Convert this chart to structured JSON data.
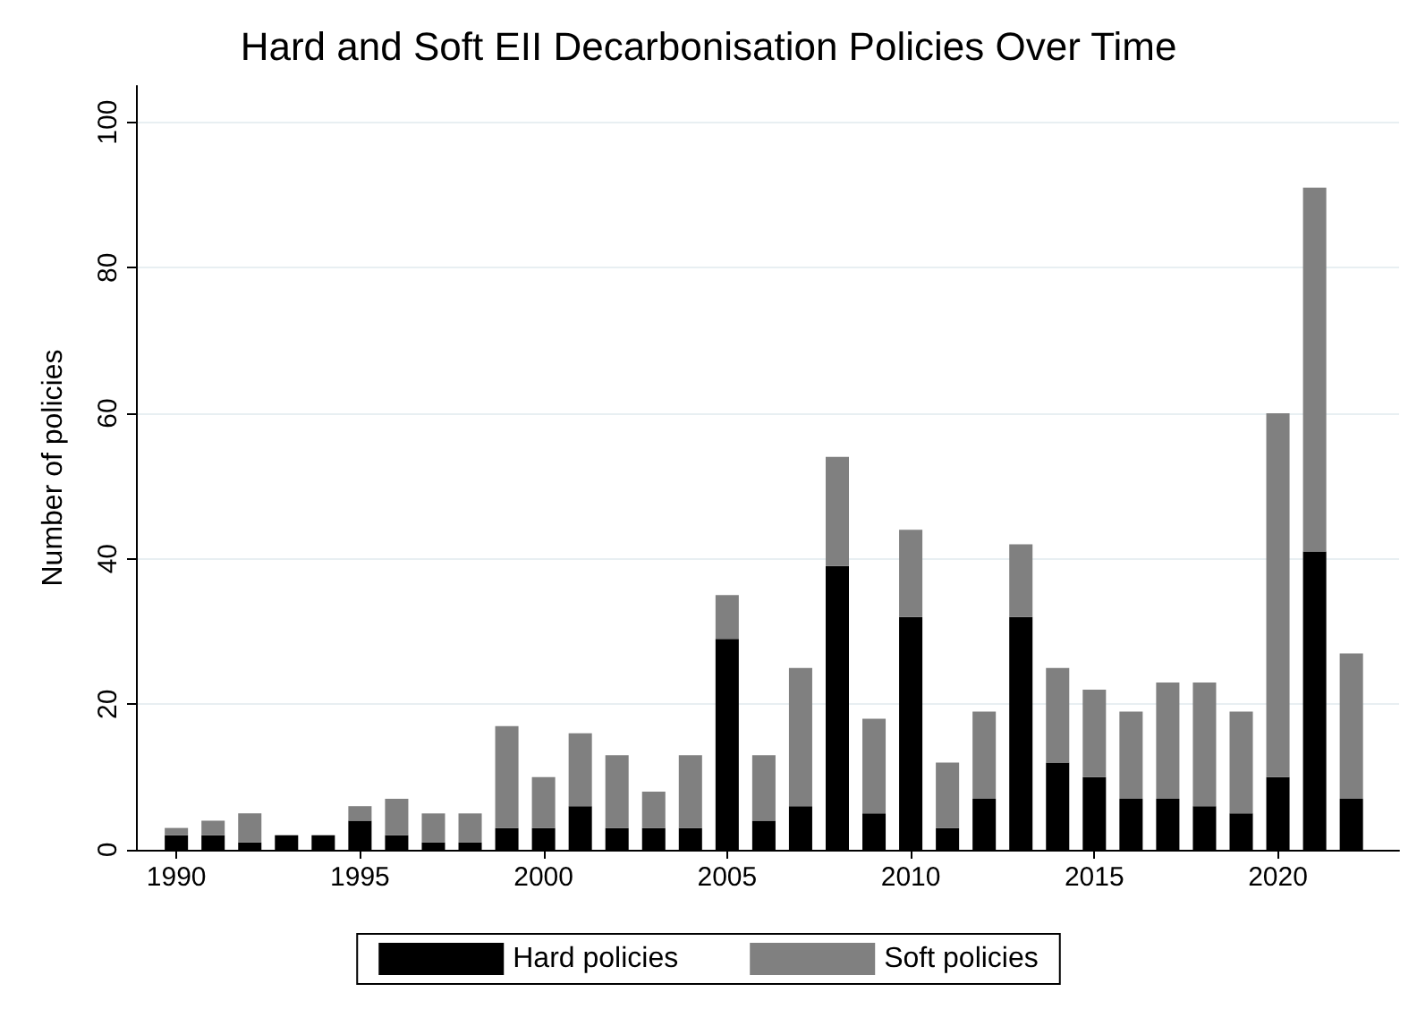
{
  "chart_data": {
    "type": "bar",
    "title": "Hard and Soft EII Decarbonisation Policies Over Time",
    "ylabel": "Number of policies",
    "x": [
      1990,
      1991,
      1992,
      1993,
      1994,
      1995,
      1996,
      1997,
      1998,
      1999,
      2000,
      2001,
      2002,
      2003,
      2004,
      2005,
      2006,
      2007,
      2008,
      2009,
      2010,
      2011,
      2012,
      2013,
      2014,
      2015,
      2016,
      2017,
      2018,
      2019,
      2020,
      2021,
      2022
    ],
    "series": [
      {
        "name": "Hard policies",
        "color": "#000000",
        "values": [
          2,
          2,
          1,
          2,
          2,
          4,
          2,
          1,
          1,
          3,
          3,
          6,
          3,
          3,
          3,
          29,
          4,
          6,
          39,
          5,
          32,
          3,
          7,
          32,
          12,
          10,
          7,
          7,
          6,
          5,
          10,
          41,
          7
        ]
      },
      {
        "name": "Soft policies",
        "color": "#808080",
        "values": [
          1,
          2,
          4,
          0,
          0,
          2,
          5,
          4,
          4,
          14,
          7,
          10,
          10,
          5,
          10,
          6,
          9,
          19,
          15,
          13,
          12,
          9,
          12,
          10,
          13,
          12,
          12,
          16,
          17,
          14,
          50,
          50,
          20
        ]
      }
    ],
    "stacked": true,
    "xlim": [
      1988.9,
      2023.3
    ],
    "xticks": [
      1990,
      1995,
      2000,
      2005,
      2010,
      2015,
      2020
    ],
    "ylim": [
      0,
      105
    ],
    "yticks": [
      0,
      20,
      40,
      60,
      80,
      100
    ],
    "grid": "y",
    "legend": "bottom"
  }
}
